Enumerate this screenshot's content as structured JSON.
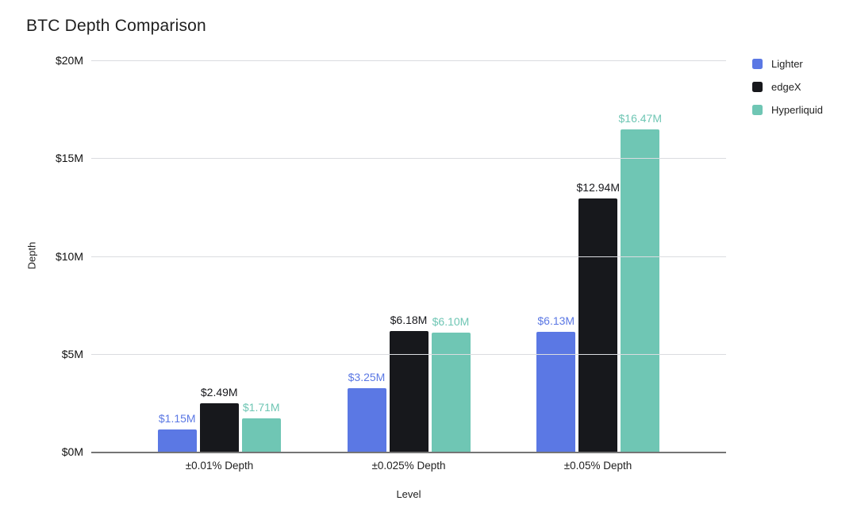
{
  "title": "BTC Depth Comparison",
  "chart_data": {
    "type": "bar",
    "title": "BTC Depth Comparison",
    "categories": [
      "±0.01% Depth",
      "±0.025% Depth",
      "±0.05% Depth"
    ],
    "series": [
      {
        "name": "Lighter",
        "color": "#5b78e4",
        "values": [
          1.15,
          3.25,
          6.13
        ],
        "value_labels": [
          "$1.15M",
          "$3.25M",
          "$6.13M"
        ]
      },
      {
        "name": "edgeX",
        "color": "#17181c",
        "values": [
          2.49,
          6.18,
          12.94
        ],
        "value_labels": [
          "$2.49M",
          "$6.18M",
          "$12.94M"
        ]
      },
      {
        "name": "Hyperliquid",
        "color": "#6fc6b4",
        "values": [
          1.71,
          6.1,
          16.47
        ],
        "value_labels": [
          "$1.71M",
          "$6.10M",
          "$16.47M"
        ]
      }
    ],
    "xlabel": "Level",
    "ylabel": "Depth",
    "ylim": [
      0,
      20
    ],
    "yticks": [
      {
        "label": "$20M",
        "value": 20
      },
      {
        "label": "$15M",
        "value": 15
      },
      {
        "label": "$10M",
        "value": 10
      },
      {
        "label": "$5M",
        "value": 5
      },
      {
        "label": "$0M",
        "value": 0
      }
    ],
    "grid": true,
    "legend_position": "top-right"
  },
  "colors": {
    "background": "#ffffff",
    "gridline": "#dadce0",
    "axis_line": "#757575",
    "text": "#1f1f1f"
  }
}
